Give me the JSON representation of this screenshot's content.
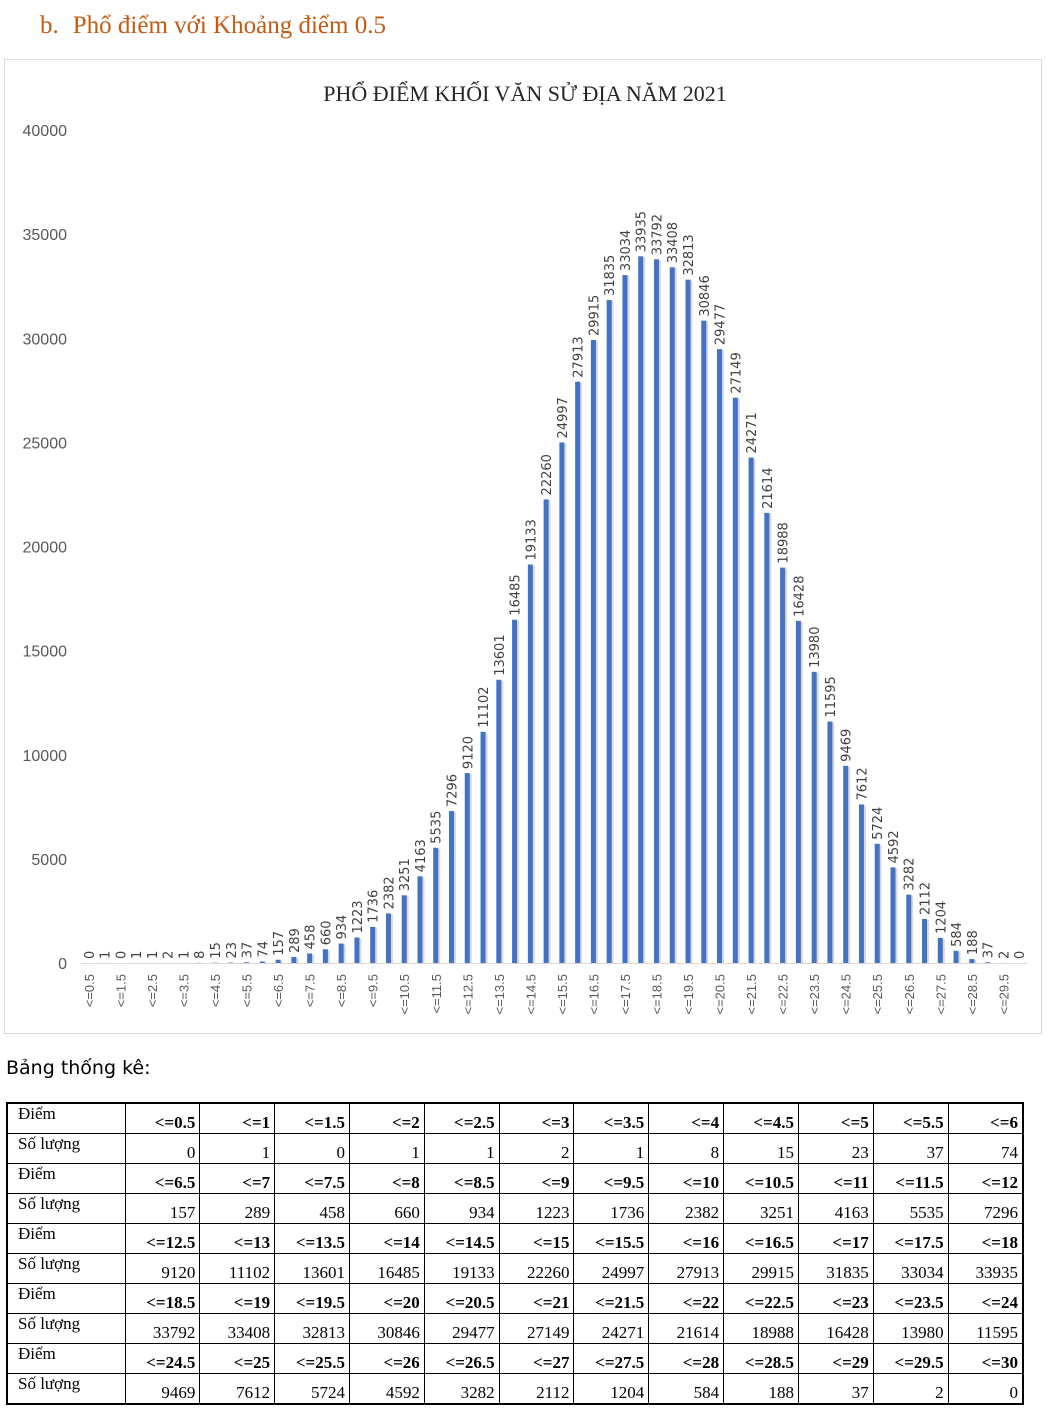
{
  "heading": {
    "letter": "b.",
    "text": "Phổ điểm với Khoảng điểm 0.5"
  },
  "chart_data": {
    "type": "bar",
    "title": "PHỔ ĐIỂM KHỐI VĂN SỬ ĐỊA NĂM 2021",
    "xlabel": "",
    "ylabel": "",
    "ylim": [
      0,
      40000
    ],
    "yticks": [
      0,
      5000,
      10000,
      15000,
      20000,
      25000,
      30000,
      35000,
      40000
    ],
    "grid": false,
    "bar_color": "#4472c4",
    "categories": [
      "<=0.5",
      "<=1",
      "<=1.5",
      "<=2",
      "<=2.5",
      "<=3",
      "<=3.5",
      "<=4",
      "<=4.5",
      "<=5",
      "<=5.5",
      "<=6",
      "<=6.5",
      "<=7",
      "<=7.5",
      "<=8",
      "<=8.5",
      "<=9",
      "<=9.5",
      "<=10",
      "<=10.5",
      "<=11",
      "<=11.5",
      "<=12",
      "<=12.5",
      "<=13",
      "<=13.5",
      "<=14",
      "<=14.5",
      "<=15",
      "<=15.5",
      "<=16",
      "<=16.5",
      "<=17",
      "<=17.5",
      "<=18",
      "<=18.5",
      "<=19",
      "<=19.5",
      "<=20",
      "<=20.5",
      "<=21",
      "<=21.5",
      "<=22",
      "<=22.5",
      "<=23",
      "<=23.5",
      "<=24",
      "<=24.5",
      "<=25",
      "<=25.5",
      "<=26",
      "<=26.5",
      "<=27",
      "<=27.5",
      "<=28",
      "<=28.5",
      "<=29",
      "<=29.5",
      "<=30"
    ],
    "values": [
      0,
      1,
      0,
      1,
      1,
      2,
      1,
      8,
      15,
      23,
      37,
      74,
      157,
      289,
      458,
      660,
      934,
      1223,
      1736,
      2382,
      3251,
      4163,
      5535,
      7296,
      9120,
      11102,
      13601,
      16485,
      19133,
      22260,
      24997,
      27913,
      29915,
      31835,
      33034,
      33935,
      33792,
      33408,
      32813,
      30846,
      29477,
      27149,
      24271,
      21614,
      18988,
      16428,
      13980,
      11595,
      9469,
      7612,
      5724,
      4592,
      3282,
      2112,
      1204,
      584,
      188,
      37,
      2,
      0
    ],
    "tick_label_every": 2
  },
  "table": {
    "caption": "Bảng thống kê:",
    "score_label": "Điểm",
    "count_label": "Số lượng",
    "blocks": [
      {
        "scores": [
          "<=0.5",
          "<=1",
          "<=1.5",
          "<=2",
          "<=2.5",
          "<=3",
          "<=3.5",
          "<=4",
          "<=4.5",
          "<=5",
          "<=5.5",
          "<=6"
        ],
        "counts": [
          "0",
          "1",
          "0",
          "1",
          "1",
          "2",
          "1",
          "8",
          "15",
          "23",
          "37",
          "74"
        ]
      },
      {
        "scores": [
          "<=6.5",
          "<=7",
          "<=7.5",
          "<=8",
          "<=8.5",
          "<=9",
          "<=9.5",
          "<=10",
          "<=10.5",
          "<=11",
          "<=11.5",
          "<=12"
        ],
        "counts": [
          "157",
          "289",
          "458",
          "660",
          "934",
          "1223",
          "1736",
          "2382",
          "3251",
          "4163",
          "5535",
          "7296"
        ]
      },
      {
        "scores": [
          "<=12.5",
          "<=13",
          "<=13.5",
          "<=14",
          "<=14.5",
          "<=15",
          "<=15.5",
          "<=16",
          "<=16.5",
          "<=17",
          "<=17.5",
          "<=18"
        ],
        "counts": [
          "9120",
          "11102",
          "13601",
          "16485",
          "19133",
          "22260",
          "24997",
          "27913",
          "29915",
          "31835",
          "33034",
          "33935"
        ]
      },
      {
        "scores": [
          "<=18.5",
          "<=19",
          "<=19.5",
          "<=20",
          "<=20.5",
          "<=21",
          "<=21.5",
          "<=22",
          "<=22.5",
          "<=23",
          "<=23.5",
          "<=24"
        ],
        "counts": [
          "33792",
          "33408",
          "32813",
          "30846",
          "29477",
          "27149",
          "24271",
          "21614",
          "18988",
          "16428",
          "13980",
          "11595"
        ]
      },
      {
        "scores": [
          "<=24.5",
          "<=25",
          "<=25.5",
          "<=26",
          "<=26.5",
          "<=27",
          "<=27.5",
          "<=28",
          "<=28.5",
          "<=29",
          "<=29.5",
          "<=30"
        ],
        "counts": [
          "9469",
          "7612",
          "5724",
          "4592",
          "3282",
          "2112",
          "1204",
          "584",
          "188",
          "37",
          "2",
          "0"
        ]
      }
    ]
  }
}
